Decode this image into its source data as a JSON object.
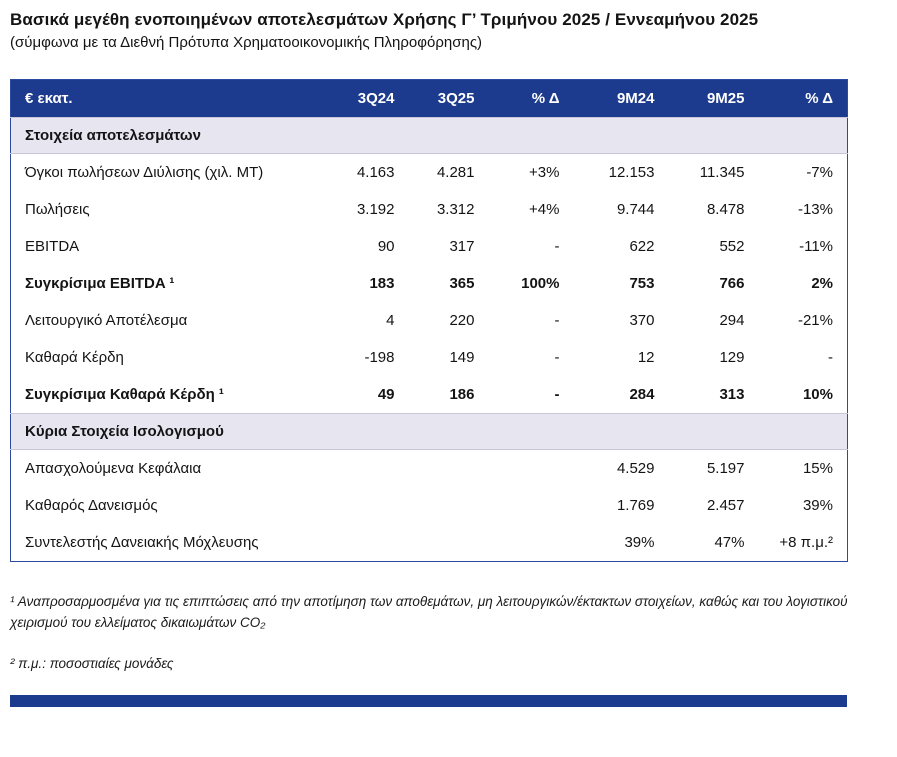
{
  "page": {
    "title": "Βασικά μεγέθη ενοποιημένων αποτελεσμάτων Χρήσης Γ’ Τριμήνου 2025 / Εννεαμήνου 2025",
    "subtitle": "(σύμφωνα με τα Διεθνή Πρότυπα Χρηματοοικονομικής Πληροφόρησης)"
  },
  "colors": {
    "header_blue": "#1d3b8e",
    "section_bg": "#e6e5f0",
    "table_border": "#2e4aa0"
  },
  "table": {
    "columns": [
      "€ εκατ.",
      "3Q24",
      "3Q25",
      "% Δ",
      "9M24",
      "9M25",
      "% Δ"
    ],
    "sections": [
      {
        "label": "Στοιχεία αποτελεσμάτων",
        "rows": [
          {
            "label": "Όγκοι πωλήσεων Διύλισης (χιλ. ΜΤ)",
            "bold": false,
            "values": [
              "4.163",
              "4.281",
              "+3%",
              "12.153",
              "11.345",
              "-7%"
            ]
          },
          {
            "label": "Πωλήσεις",
            "bold": false,
            "values": [
              "3.192",
              "3.312",
              "+4%",
              "9.744",
              "8.478",
              "-13%"
            ]
          },
          {
            "label": "EBITDA",
            "bold": false,
            "values": [
              "90",
              "317",
              "-",
              "622",
              "552",
              "-11%"
            ]
          },
          {
            "label": "Συγκρίσιμα EBITDA ¹",
            "bold": true,
            "values": [
              "183",
              "365",
              "100%",
              "753",
              "766",
              "2%"
            ]
          },
          {
            "label": "Λειτουργικό Αποτέλεσμα",
            "bold": false,
            "values": [
              "4",
              "220",
              "-",
              "370",
              "294",
              "-21%"
            ]
          },
          {
            "label": "Καθαρά Κέρδη",
            "bold": false,
            "values": [
              "-198",
              "149",
              "-",
              "12",
              "129",
              "-"
            ]
          },
          {
            "label": "Συγκρίσιμα Καθαρά Κέρδη ¹",
            "bold": true,
            "values": [
              "49",
              "186",
              "-",
              "284",
              "313",
              "10%"
            ]
          }
        ]
      },
      {
        "label": "Κύρια Στοιχεία Ισολογισμού",
        "rows": [
          {
            "label": "Απασχολούμενα Κεφάλαια",
            "bold": false,
            "values": [
              "",
              "",
              "",
              "4.529",
              "5.197",
              "15%"
            ]
          },
          {
            "label": "Καθαρός Δανεισμός",
            "bold": false,
            "values": [
              "",
              "",
              "",
              "1.769",
              "2.457",
              "39%"
            ]
          },
          {
            "label": "Συντελεστής Δανειακής Μόχλευσης",
            "bold": false,
            "values": [
              "",
              "",
              "",
              "39%",
              "47%",
              "+8 π.μ.²"
            ]
          }
        ]
      }
    ]
  },
  "footnotes": [
    "¹ Αναπροσαρμοσμένα για τις επιπτώσεις από την αποτίμηση των αποθεμάτων, μη λειτουργικών/έκτακτων στοιχείων, καθώς και του λογιστικού χειρισμού του ελλείματος δικαιωμάτων CO₂",
    "² π.μ.: ποσοστιαίες μονάδες"
  ]
}
